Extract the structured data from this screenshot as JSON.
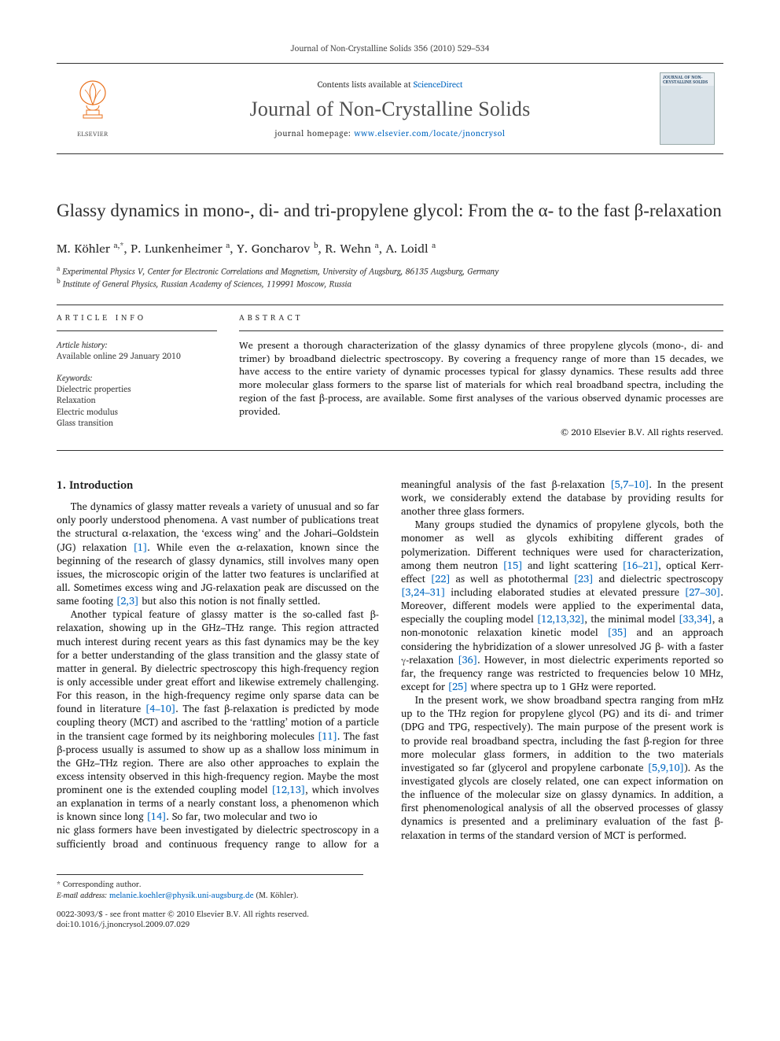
{
  "running_head": "Journal of Non-Crystalline Solids 356 (2010) 529–534",
  "masthead": {
    "contents_prefix": "Contents lists available at ",
    "contents_link": "ScienceDirect",
    "journal_title": "Journal of Non-Crystalline Solids",
    "homepage_prefix": "journal homepage: ",
    "homepage_url": "www.elsevier.com/locate/jnoncrysol",
    "publisher_name": "ELSEVIER",
    "thumb_title": "JOURNAL OF NON-CRYSTALLINE SOLIDS"
  },
  "article": {
    "title_html": "Glassy dynamics in mono-, di- and tri-propylene glycol: From the α- to the fast β-relaxation",
    "authors_html": "M. Köhler <sup>a,*</sup>, P. Lunkenheimer <sup>a</sup>, Y. Goncharov <sup>b</sup>, R. Wehn <sup>a</sup>, A. Loidl <sup>a</sup>",
    "affiliations": [
      {
        "marker": "a",
        "text": "Experimental Physics V, Center for Electronic Correlations and Magnetism, University of Augsburg, 86135 Augsburg, Germany"
      },
      {
        "marker": "b",
        "text": "Institute of General Physics, Russian Academy of Sciences, 119991 Moscow, Russia"
      }
    ]
  },
  "info": {
    "heading": "article info",
    "history_label": "Article history:",
    "history_line": "Available online 29 January 2010",
    "keywords_label": "Keywords:",
    "keywords": [
      "Dielectric properties",
      "Relaxation",
      "Electric modulus",
      "Glass transition"
    ]
  },
  "abstract": {
    "heading": "abstract",
    "text": "We present a thorough characterization of the glassy dynamics of three propylene glycols (mono-, di- and trimer) by broadband dielectric spectroscopy. By covering a frequency range of more than 15 decades, we have access to the entire variety of dynamic processes typical for glassy dynamics. These results add three more molecular glass formers to the sparse list of materials for which real broadband spectra, including the region of the fast β-process, are available. Some first analyses of the various observed dynamic processes are provided.",
    "copyright": "© 2010 Elsevier B.V. All rights reserved."
  },
  "body": {
    "section_number": "1.",
    "section_title": "Introduction",
    "p1": "The dynamics of glassy matter reveals a variety of unusual and so far only poorly understood phenomena. A vast number of publications treat the structural α-relaxation, the ‘excess wing’ and the Johari–Goldstein (JG) relaxation [1]. While even the α-relaxation, known since the beginning of the research of glassy dynamics, still involves many open issues, the microscopic origin of the latter two features is unclarified at all. Sometimes excess wing and JG-relaxation peak are discussed on the same footing [2,3] but also this notion is not finally settled.",
    "p2": "Another typical feature of glassy matter is the so-called fast β-relaxation, showing up in the GHz–THz range. This region attracted much interest during recent years as this fast dynamics may be the key for a better understanding of the glass transition and the glassy state of matter in general. By dielectric spectroscopy this high-frequency region is only accessible under great effort and likewise extremely challenging. For this reason, in the high-frequency regime only sparse data can be found in literature [4–10]. The fast β-relaxation is predicted by mode coupling theory (MCT) and ascribed to the ‘rattling’ motion of a particle in the transient cage formed by its neighboring molecules [11]. The fast β-process usually is assumed to show up as a shallow loss minimum in the GHz–THz region. There are also other approaches to explain the excess intensity observed in this high-frequency region. Maybe the most prominent one is the extended coupling model [12,13], which involves an explanation in terms of a nearly constant loss, a phenomenon which is known since long [14]. So far, two molecular and two io",
    "p2b": "nic glass formers have been investigated by dielectric spectroscopy in a sufficiently broad and continuous frequency range to allow for a meaningful analysis of the fast β-relaxation [5,7–10]. In the present work, we considerably extend the database by providing results for another three glass formers.",
    "p3": "Many groups studied the dynamics of propylene glycols, both the monomer as well as glycols exhibiting different grades of polymerization. Different techniques were used for characterization, among them neutron [15] and light scattering [16–21], optical Kerr-effect [22] as well as photothermal [23] and dielectric spectroscopy [3,24–31] including elaborated studies at elevated pressure [27–30]. Moreover, different models were applied to the experimental data, especially the coupling model [12,13,32], the minimal model [33,34], a non-monotonic relaxation kinetic model [35] and an approach considering the hybridization of a slower unresolved JG β- with a faster γ-relaxation [36]. However, in most dielectric experiments reported so far, the frequency range was restricted to frequencies below 10 MHz, except for [25] where spectra up to 1 GHz were reported.",
    "p4": "In the present work, we show broadband spectra ranging from mHz up to the THz region for propylene glycol (PG) and its di- and trimer (DPG and TPG, respectively). The main purpose of the present work is to provide real broadband spectra, including the fast β-region for three more molecular glass formers, in addition to the two materials investigated so far (glycerol and propylene carbonate [5,9,10]). As the investigated glycols are closely related, one can expect information on the influence of the molecular size on glassy dynamics. In addition, a first phenomenological analysis of all the observed processes of glassy dynamics is presented and a preliminary evaluation of the fast β-relaxation in terms of the standard version of MCT is performed."
  },
  "footer": {
    "corr_label": "* Corresponding author.",
    "email_label": "E-mail address:",
    "email": "melanie.koehler@physik.uni-augsburg.de",
    "email_paren": "(M. Köhler).",
    "issn_line": "0022-3093/$ - see front matter © 2010 Elsevier B.V. All rights reserved.",
    "doi_line": "doi:10.1016/j.jnoncrysol.2009.07.029"
  },
  "colors": {
    "link": "#0066c0",
    "rule": "#333333",
    "elsevier_orange": "#e9711c"
  }
}
